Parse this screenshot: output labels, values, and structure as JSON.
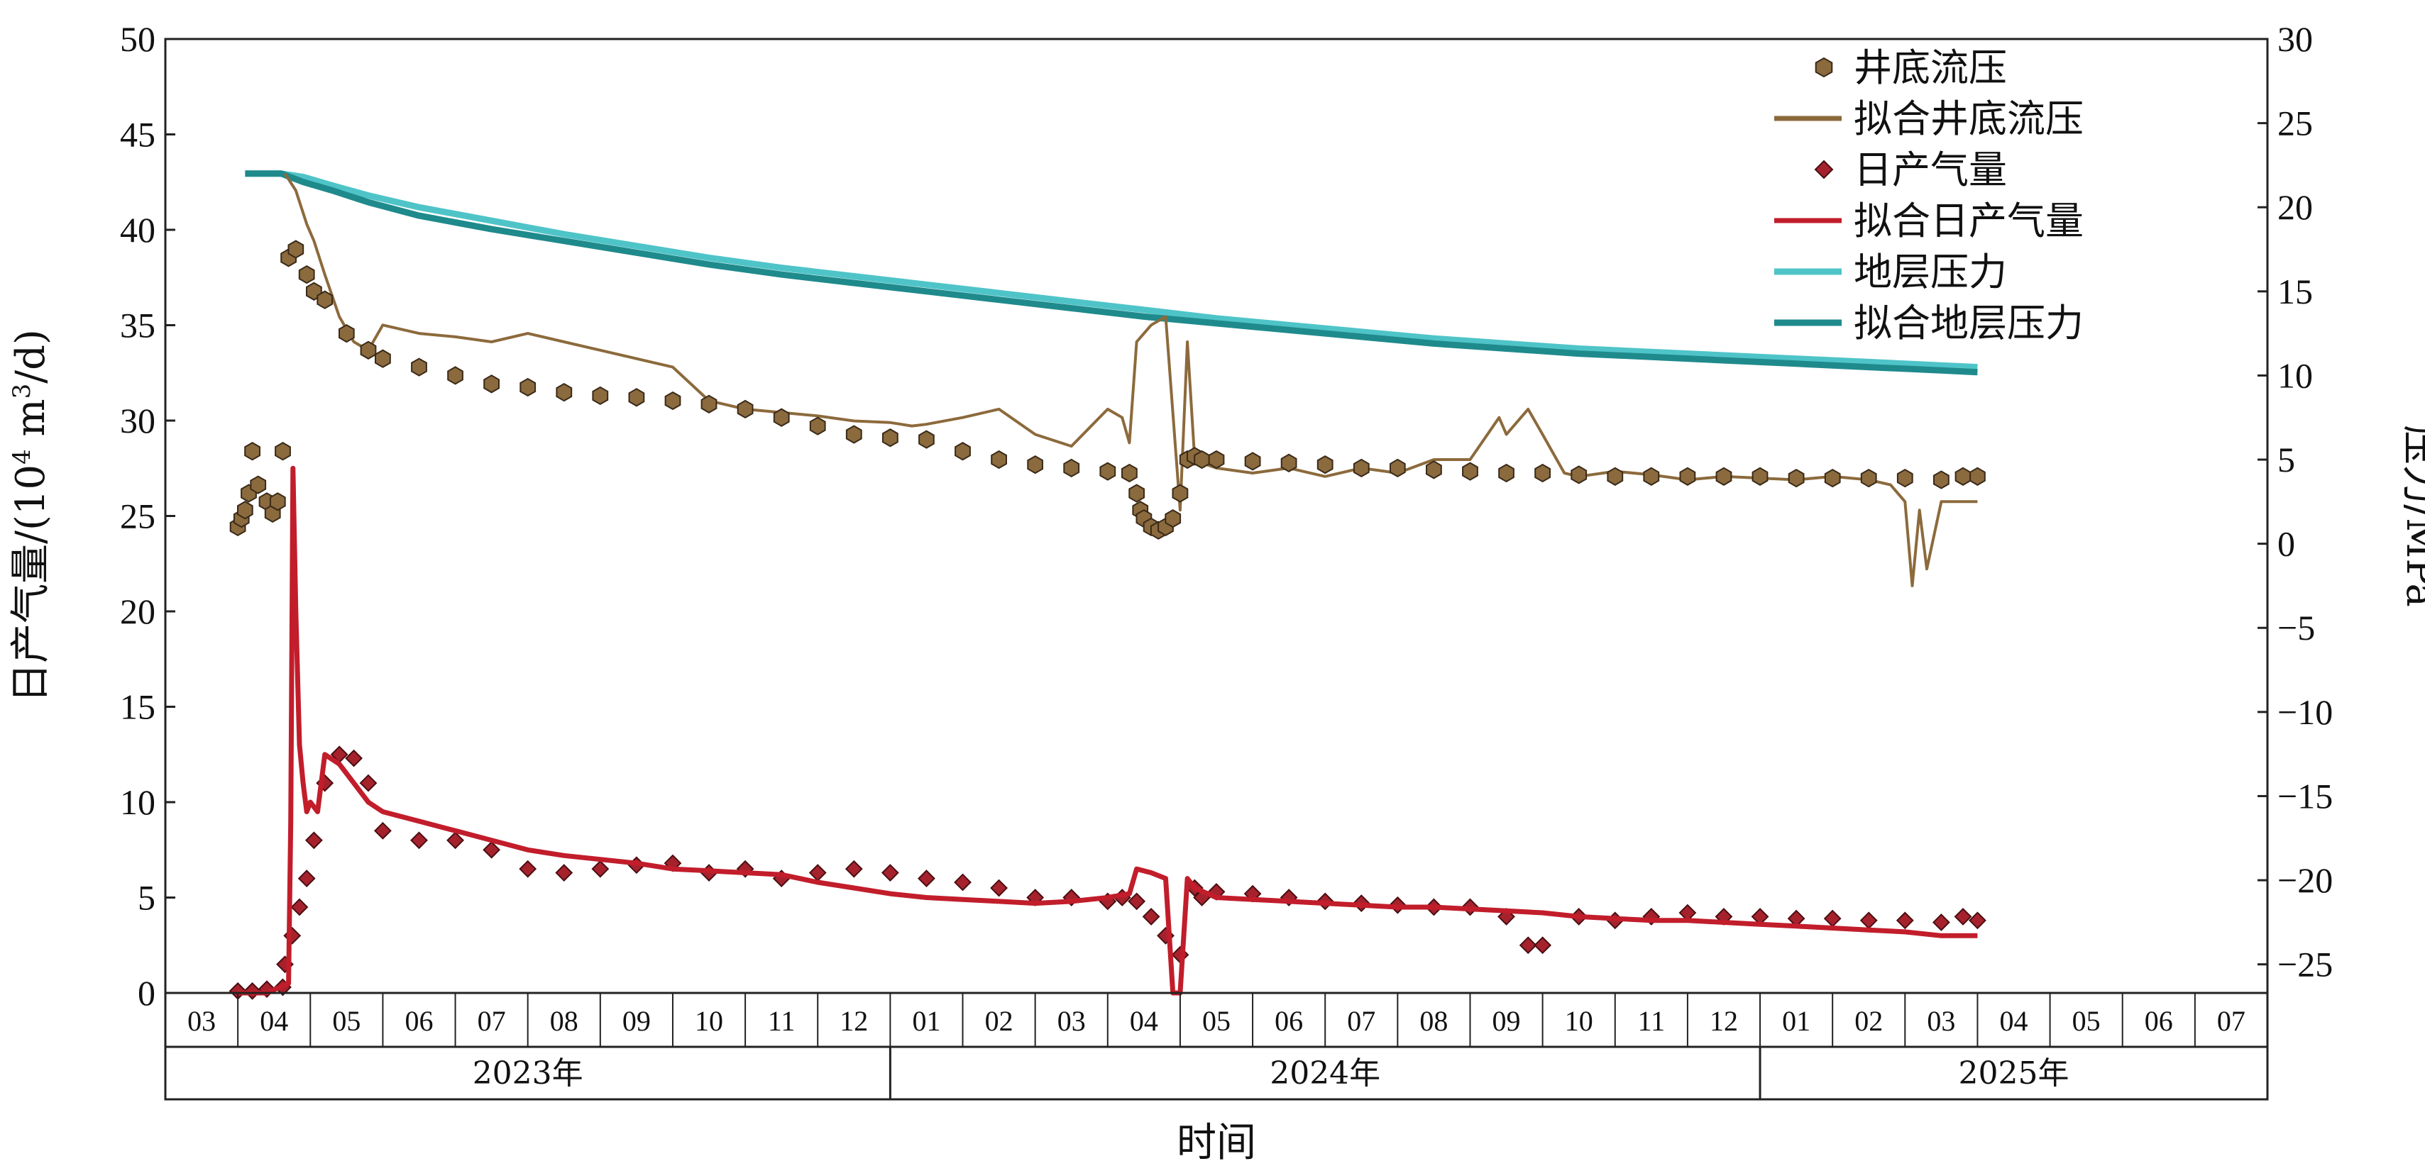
{
  "chart_data": {
    "type": "line",
    "xlabel": "时间",
    "ylabel_left": "日产气量/(10⁴ m³/d)",
    "ylabel_left_parts": {
      "main": "日产气量/(10",
      "sup1": "4",
      "mid": " m",
      "sup2": "3",
      "end": "/d)"
    },
    "ylabel_right": "压力/MPa",
    "ylim_left": [
      0,
      50
    ],
    "yticks_left": [
      "0",
      "5",
      "10",
      "15",
      "20",
      "25",
      "30",
      "35",
      "40",
      "45",
      "50"
    ],
    "ylim_right": [
      -26.7,
      30
    ],
    "yticks_right": [
      "−25",
      "−20",
      "−15",
      "−10",
      "−5",
      "0",
      "5",
      "10",
      "15",
      "20",
      "25",
      "30"
    ],
    "x_range": [
      "2023-03",
      "2025-07"
    ],
    "months": [
      "03",
      "04",
      "05",
      "06",
      "07",
      "08",
      "09",
      "10",
      "11",
      "12",
      "01",
      "02",
      "03",
      "04",
      "05",
      "06",
      "07",
      "08",
      "09",
      "10",
      "11",
      "12",
      "01",
      "02",
      "03",
      "04",
      "05",
      "06",
      "07"
    ],
    "years": [
      {
        "label": "2023年",
        "first_month": 0,
        "count": 10
      },
      {
        "label": "2024年",
        "first_month": 10,
        "count": 12
      },
      {
        "label": "2025年",
        "first_month": 22,
        "count": 7
      }
    ],
    "legend_position": "top-right",
    "colors": {
      "bhp_marker": "#8b6a3e",
      "bhp_fit": "#8c6a3c",
      "gas_marker": "#a5222d",
      "gas_fit": "#c21d2b",
      "formation": "#4fc4c8",
      "formation_fit": "#1f8a8c"
    },
    "series": [
      {
        "name": "井底流压",
        "axis": "right",
        "style": "hexagon-marker",
        "x": [
          1.0,
          1.05,
          1.1,
          1.15,
          1.2,
          1.28,
          1.4,
          1.48,
          1.55,
          1.62,
          1.7,
          1.8,
          1.95,
          2.05,
          2.2,
          2.5,
          2.8,
          3.0,
          3.5,
          4.0,
          4.5,
          5.0,
          5.5,
          6.0,
          6.5,
          7.0,
          7.5,
          8.0,
          8.5,
          9.0,
          9.5,
          10.0,
          10.5,
          11.0,
          11.5,
          12.0,
          12.5,
          13.0,
          13.3,
          13.4,
          13.45,
          13.5,
          13.6,
          13.7,
          13.8,
          13.9,
          14.0,
          14.1,
          14.2,
          14.3,
          14.5,
          15.0,
          15.5,
          16.0,
          16.5,
          17.0,
          17.5,
          18.0,
          18.5,
          19.0,
          19.5,
          20.0,
          20.5,
          21.0,
          21.5,
          22.0,
          22.5,
          23.0,
          23.5,
          24.0,
          24.5,
          24.8,
          25.0
        ],
        "y": [
          1.0,
          1.5,
          2.0,
          3.0,
          5.5,
          3.5,
          2.5,
          1.8,
          2.5,
          5.5,
          17.0,
          17.5,
          16.0,
          15.0,
          14.5,
          12.5,
          11.5,
          11.0,
          10.5,
          10.0,
          9.5,
          9.3,
          9.0,
          8.8,
          8.7,
          8.5,
          8.3,
          8.0,
          7.5,
          7.0,
          6.5,
          6.3,
          6.2,
          5.5,
          5.0,
          4.7,
          4.5,
          4.3,
          4.2,
          3.0,
          2.0,
          1.5,
          1.0,
          0.8,
          1.0,
          1.5,
          3.0,
          5.0,
          5.2,
          5.0,
          5.0,
          4.9,
          4.8,
          4.7,
          4.5,
          4.5,
          4.4,
          4.3,
          4.2,
          4.2,
          4.1,
          4.0,
          4.0,
          4.0,
          4.0,
          4.0,
          3.9,
          3.9,
          3.9,
          3.9,
          3.8,
          4.0,
          4.0
        ]
      },
      {
        "name": "拟合井底流压",
        "axis": "right",
        "style": "line",
        "x": [
          1.65,
          1.8,
          1.95,
          2.05,
          2.2,
          2.4,
          2.6,
          2.8,
          3.0,
          3.5,
          4.0,
          4.5,
          5.0,
          5.5,
          6.0,
          6.5,
          7.0,
          7.5,
          8.0,
          8.5,
          9.0,
          9.5,
          10.0,
          10.3,
          10.5,
          11.0,
          11.5,
          12.0,
          12.5,
          13.0,
          13.2,
          13.3,
          13.4,
          13.6,
          13.8,
          14.0,
          14.1,
          14.2,
          14.3,
          14.5,
          15.0,
          15.5,
          16.0,
          16.5,
          17.0,
          17.5,
          18.0,
          18.4,
          18.5,
          18.8,
          19.0,
          19.3,
          19.5,
          20.0,
          20.5,
          21.0,
          21.5,
          22.0,
          22.5,
          23.0,
          23.5,
          23.8,
          24.0,
          24.1,
          24.2,
          24.3,
          24.5,
          24.8,
          25.0
        ],
        "y": [
          22.0,
          21.0,
          19.0,
          18.0,
          16.0,
          13.5,
          12.0,
          11.5,
          13.0,
          12.5,
          12.3,
          12.0,
          12.5,
          12.0,
          11.5,
          11.0,
          10.5,
          8.5,
          8.0,
          7.8,
          7.6,
          7.3,
          7.2,
          7.0,
          7.1,
          7.5,
          8.0,
          6.5,
          5.8,
          8.0,
          7.5,
          6.0,
          12.0,
          13.0,
          13.5,
          2.0,
          12.0,
          5.0,
          4.8,
          4.5,
          4.2,
          4.5,
          4.0,
          4.5,
          4.2,
          5.0,
          5.0,
          7.5,
          6.5,
          8.0,
          6.5,
          4.2,
          4.0,
          4.3,
          4.1,
          3.8,
          4.0,
          3.9,
          3.8,
          4.0,
          3.8,
          3.5,
          2.5,
          -2.5,
          2.0,
          -1.5,
          2.5,
          2.5,
          2.5
        ]
      },
      {
        "name": "日产气量",
        "axis": "left",
        "style": "diamond-marker",
        "x": [
          1.0,
          1.2,
          1.4,
          1.62,
          1.65,
          1.75,
          1.85,
          1.95,
          2.05,
          2.2,
          2.4,
          2.6,
          2.8,
          3.0,
          3.5,
          4.0,
          4.5,
          5.0,
          5.5,
          6.0,
          6.5,
          7.0,
          7.5,
          8.0,
          8.5,
          9.0,
          9.5,
          10.0,
          10.5,
          11.0,
          11.5,
          12.0,
          12.5,
          13.0,
          13.2,
          13.4,
          13.6,
          13.8,
          14.0,
          14.2,
          14.3,
          14.5,
          15.0,
          15.5,
          16.0,
          16.5,
          17.0,
          17.5,
          18.0,
          18.5,
          18.8,
          19.0,
          19.5,
          20.0,
          20.5,
          21.0,
          21.5,
          22.0,
          22.5,
          23.0,
          23.5,
          24.0,
          24.5,
          24.8,
          25.0
        ],
        "y": [
          0.1,
          0.1,
          0.2,
          0.3,
          1.5,
          3.0,
          4.5,
          6.0,
          8.0,
          11.0,
          12.5,
          12.3,
          11.0,
          8.5,
          8.0,
          8.0,
          7.5,
          6.5,
          6.3,
          6.5,
          6.7,
          6.8,
          6.3,
          6.5,
          6.0,
          6.3,
          6.5,
          6.3,
          6.0,
          5.8,
          5.5,
          5.0,
          5.0,
          4.8,
          5.0,
          4.8,
          4.0,
          3.0,
          2.0,
          5.5,
          5.0,
          5.3,
          5.2,
          5.0,
          4.8,
          4.7,
          4.6,
          4.5,
          4.5,
          4.0,
          2.5,
          2.5,
          4.0,
          3.8,
          4.0,
          4.2,
          4.0,
          4.0,
          3.9,
          3.9,
          3.8,
          3.8,
          3.7,
          4.0,
          3.8
        ]
      },
      {
        "name": "拟合日产气量",
        "axis": "left",
        "style": "line",
        "x": [
          1.0,
          1.4,
          1.7,
          1.73,
          1.76,
          1.8,
          1.85,
          1.9,
          1.95,
          2.0,
          2.1,
          2.2,
          2.4,
          2.6,
          2.8,
          3.0,
          3.5,
          4.0,
          4.5,
          5.0,
          5.5,
          6.0,
          6.5,
          7.0,
          7.5,
          8.0,
          8.5,
          9.0,
          9.5,
          10.0,
          10.5,
          11.0,
          11.5,
          12.0,
          12.5,
          13.0,
          13.3,
          13.4,
          13.6,
          13.8,
          13.9,
          14.0,
          14.1,
          14.2,
          14.5,
          15.0,
          15.5,
          16.0,
          16.5,
          17.0,
          17.5,
          18.0,
          18.5,
          19.0,
          19.5,
          20.0,
          20.5,
          21.0,
          21.5,
          22.0,
          22.5,
          23.0,
          23.5,
          24.0,
          24.5,
          24.8,
          25.0
        ],
        "y": [
          0.0,
          0.0,
          0.5,
          9.0,
          27.5,
          20.0,
          13.0,
          11.0,
          9.5,
          10.0,
          9.5,
          12.5,
          12.0,
          11.0,
          10.0,
          9.5,
          9.0,
          8.5,
          8.0,
          7.5,
          7.2,
          7.0,
          6.8,
          6.5,
          6.4,
          6.3,
          6.2,
          5.8,
          5.5,
          5.2,
          5.0,
          4.9,
          4.8,
          4.7,
          4.8,
          5.0,
          5.2,
          6.5,
          6.3,
          6.0,
          0.0,
          0.0,
          6.0,
          5.5,
          5.0,
          4.9,
          4.8,
          4.7,
          4.6,
          4.5,
          4.5,
          4.4,
          4.3,
          4.2,
          4.0,
          3.9,
          3.8,
          3.8,
          3.7,
          3.6,
          3.5,
          3.4,
          3.3,
          3.2,
          3.0,
          3.0,
          3.0
        ]
      },
      {
        "name": "地层压力",
        "axis": "right",
        "style": "line",
        "x": [
          1.1,
          1.6,
          1.9,
          2.3,
          2.8,
          3.5,
          4.5,
          5.5,
          6.5,
          7.5,
          8.5,
          9.5,
          10.5,
          11.5,
          12.5,
          13.5,
          14.5,
          15.5,
          16.5,
          17.5,
          18.5,
          19.5,
          20.5,
          21.5,
          22.5,
          23.5,
          24.5,
          25.0
        ],
        "y": [
          22.0,
          22.0,
          21.8,
          21.3,
          20.7,
          20.0,
          19.2,
          18.4,
          17.7,
          17.0,
          16.4,
          15.9,
          15.4,
          14.9,
          14.4,
          13.9,
          13.4,
          13.0,
          12.6,
          12.2,
          11.9,
          11.6,
          11.4,
          11.2,
          11.0,
          10.8,
          10.6,
          10.5
        ]
      },
      {
        "name": "拟合地层压力",
        "axis": "right",
        "style": "line",
        "x": [
          1.1,
          1.6,
          1.9,
          2.3,
          2.8,
          3.5,
          4.5,
          5.5,
          6.5,
          7.5,
          8.5,
          9.5,
          10.5,
          11.5,
          12.5,
          13.5,
          14.5,
          15.5,
          16.5,
          17.5,
          18.5,
          19.5,
          20.5,
          21.5,
          22.5,
          23.5,
          24.5,
          25.0
        ],
        "y": [
          22.0,
          22.0,
          21.5,
          21.0,
          20.3,
          19.5,
          18.7,
          18.0,
          17.3,
          16.6,
          16.0,
          15.5,
          15.0,
          14.5,
          14.0,
          13.5,
          13.1,
          12.7,
          12.3,
          11.9,
          11.6,
          11.3,
          11.1,
          10.9,
          10.7,
          10.5,
          10.3,
          10.2
        ]
      }
    ]
  }
}
